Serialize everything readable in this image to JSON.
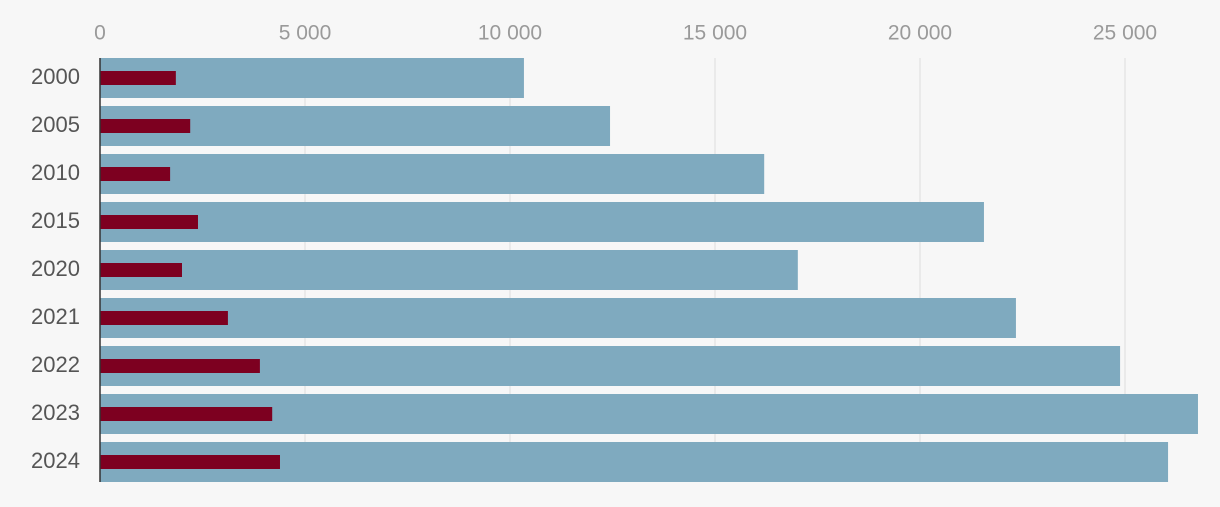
{
  "chart_data": {
    "type": "bar",
    "orientation": "horizontal",
    "overlap": true,
    "categories": [
      "2000",
      "2005",
      "2010",
      "2015",
      "2020",
      "2021",
      "2022",
      "2023",
      "2024"
    ],
    "series": [
      {
        "color": "#7faabf",
        "values": [
          10340,
          12440,
          16200,
          21560,
          17020,
          22340,
          24880,
          26780,
          26050
        ]
      },
      {
        "color": "#7d0020",
        "values": [
          1850,
          2200,
          1710,
          2390,
          2000,
          3120,
          3900,
          4200,
          4390
        ]
      }
    ],
    "xlim": [
      0,
      26800
    ],
    "xticks": [
      0,
      {
        "value": 5000,
        "label": "5 000"
      },
      {
        "value": 10000,
        "label": "10 000"
      },
      {
        "value": 15000,
        "label": "15 000"
      },
      {
        "value": 20000,
        "label": "20 000"
      },
      {
        "value": 25000,
        "label": "25 000"
      }
    ],
    "grid": true
  }
}
